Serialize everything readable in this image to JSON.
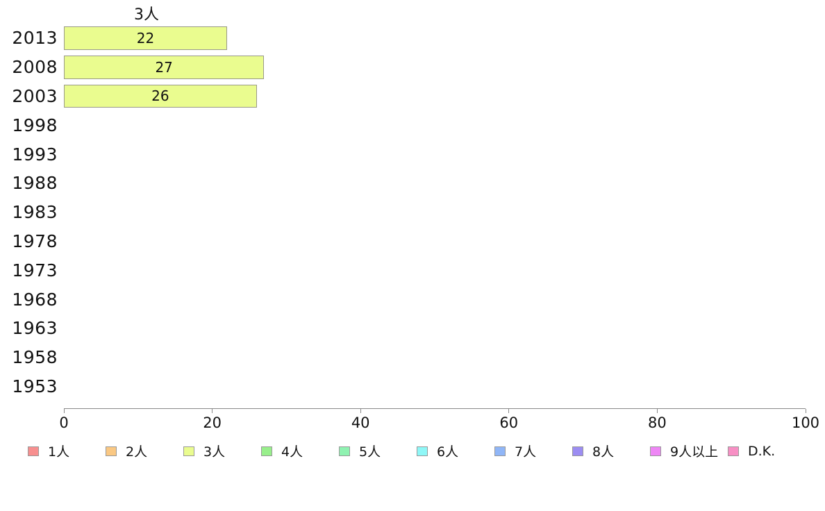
{
  "chart_data": {
    "type": "bar",
    "orientation": "horizontal",
    "title": "3人",
    "series_name": "3人",
    "categories": [
      "2013",
      "2008",
      "2003",
      "1998",
      "1993",
      "1988",
      "1983",
      "1978",
      "1973",
      "1968",
      "1963",
      "1958",
      "1953"
    ],
    "values": [
      22,
      27,
      26,
      null,
      null,
      null,
      null,
      null,
      null,
      null,
      null,
      null,
      null
    ],
    "xlabel": "",
    "ylabel": "",
    "xlim": [
      0,
      100
    ],
    "x_ticks": [
      0,
      20,
      40,
      60,
      80,
      100
    ],
    "grid": false,
    "bar_color": "#EAFC8F",
    "bar_border_color": "#999988",
    "axis_color": "#888888",
    "legend_position": "bottom",
    "legend": [
      {
        "label": "1人",
        "color": "#F78F8F"
      },
      {
        "label": "2人",
        "color": "#FAC883"
      },
      {
        "label": "3人",
        "color": "#EAFC8F"
      },
      {
        "label": "4人",
        "color": "#98EF8B"
      },
      {
        "label": "5人",
        "color": "#8FF2B1"
      },
      {
        "label": "6人",
        "color": "#8FF7F7"
      },
      {
        "label": "7人",
        "color": "#90B6F7"
      },
      {
        "label": "8人",
        "color": "#9C8DF2"
      },
      {
        "label": "9人以上",
        "color": "#EE86F5"
      },
      {
        "label": "D.K.",
        "color": "#F78FC4"
      }
    ]
  }
}
